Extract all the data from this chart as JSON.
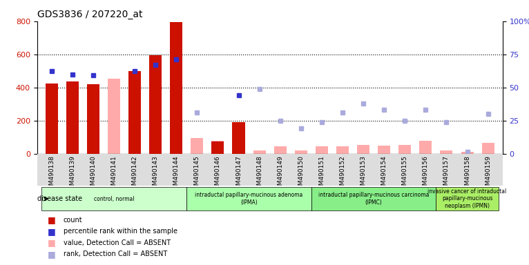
{
  "title": "GDS3836 / 207220_at",
  "samples": [
    "GSM490138",
    "GSM490139",
    "GSM490140",
    "GSM490141",
    "GSM490142",
    "GSM490143",
    "GSM490144",
    "GSM490145",
    "GSM490146",
    "GSM490147",
    "GSM490148",
    "GSM490149",
    "GSM490150",
    "GSM490151",
    "GSM490152",
    "GSM490153",
    "GSM490154",
    "GSM490155",
    "GSM490156",
    "GSM490157",
    "GSM490158",
    "GSM490159"
  ],
  "count_values": [
    425,
    435,
    420,
    null,
    500,
    595,
    795,
    null,
    75,
    190,
    null,
    null,
    null,
    null,
    null,
    null,
    null,
    null,
    null,
    null,
    null,
    null
  ],
  "percentile_rank": [
    500,
    480,
    475,
    null,
    500,
    535,
    570,
    null,
    null,
    355,
    null,
    null,
    null,
    null,
    null,
    null,
    null,
    null,
    null,
    null,
    null,
    null
  ],
  "absent_value": [
    null,
    null,
    null,
    455,
    null,
    null,
    null,
    95,
    80,
    null,
    20,
    45,
    20,
    45,
    45,
    55,
    50,
    55,
    80,
    20,
    10,
    65
  ],
  "absent_rank": [
    null,
    null,
    null,
    null,
    null,
    null,
    null,
    250,
    null,
    null,
    390,
    200,
    155,
    190,
    250,
    305,
    265,
    200,
    265,
    190,
    10,
    240
  ],
  "ylim_left": [
    0,
    800
  ],
  "ylim_right": [
    0,
    100
  ],
  "yticks_left": [
    0,
    200,
    400,
    600,
    800
  ],
  "yticks_right": [
    0,
    25,
    50,
    75,
    100
  ],
  "disease_groups": [
    {
      "label": "control, normal",
      "start": 0,
      "end": 7,
      "color": "#ccffcc"
    },
    {
      "label": "intraductal papillary-mucinous adenoma\n(IPMA)",
      "start": 7,
      "end": 13,
      "color": "#aaffaa"
    },
    {
      "label": "intraductal papillary-mucinous carcinoma\n(IPMC)",
      "start": 13,
      "end": 19,
      "color": "#88ee88"
    },
    {
      "label": "invasive cancer of intraductal\npapillary-mucinous\nneoplasm (IPMN)",
      "start": 19,
      "end": 22,
      "color": "#aaee66"
    }
  ],
  "bar_color_red": "#cc1100",
  "bar_color_pink": "#ffaaaa",
  "dot_color_blue": "#3333cc",
  "dot_color_lightblue": "#aaaadd",
  "background_color": "#dddddd"
}
